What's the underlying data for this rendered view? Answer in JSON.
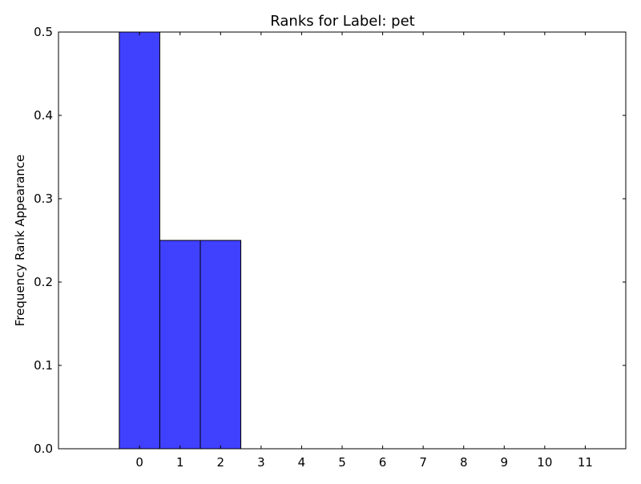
{
  "chart_data": {
    "type": "bar",
    "title": "Ranks for Label: pet",
    "xlabel": "",
    "ylabel": "Frequency Rank Appearance",
    "categories": [
      "0",
      "1",
      "2",
      "3",
      "4",
      "5",
      "6",
      "7",
      "8",
      "9",
      "10",
      "11"
    ],
    "x": [
      0,
      1,
      2,
      3,
      4,
      5,
      6,
      7,
      8,
      9,
      10,
      11
    ],
    "values": [
      0.5,
      0.25,
      0.25,
      0,
      0,
      0,
      0,
      0,
      0,
      0,
      0,
      0
    ],
    "xlim": [
      -2,
      12
    ],
    "ylim": [
      0,
      0.5
    ],
    "yticks": [
      "0.0",
      "0.1",
      "0.2",
      "0.3",
      "0.4",
      "0.5"
    ],
    "ytick_values": [
      0,
      0.1,
      0.2,
      0.3,
      0.4,
      0.5
    ],
    "grid": false,
    "legend": "none",
    "bar_color": "#4040ff",
    "bar_edge_color": "#000000"
  }
}
